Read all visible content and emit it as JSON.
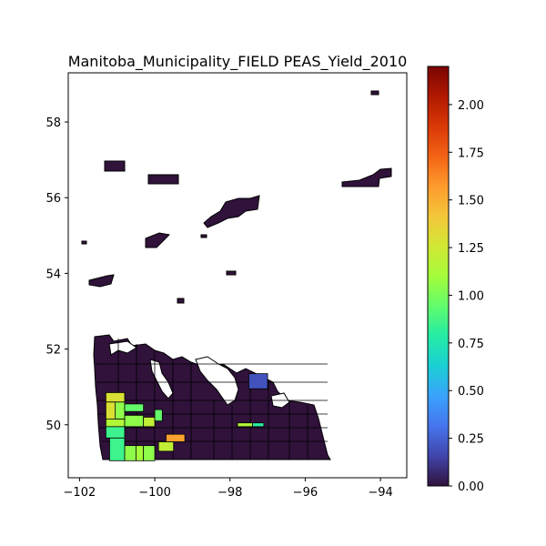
{
  "title": "Manitoba_Municipality_FIELD PEAS_Yield_2010",
  "x_axis": {
    "range": [
      -102.3,
      -93.3
    ],
    "ticks": [
      {
        "v": -102,
        "label": "−102"
      },
      {
        "v": -100,
        "label": "−100"
      },
      {
        "v": -98,
        "label": "−98"
      },
      {
        "v": -96,
        "label": "−96"
      },
      {
        "v": -94,
        "label": "−94"
      }
    ]
  },
  "y_axis": {
    "range": [
      48.6,
      59.3
    ],
    "ticks": [
      {
        "v": 50,
        "label": "50"
      },
      {
        "v": 52,
        "label": "52"
      },
      {
        "v": 54,
        "label": "54"
      },
      {
        "v": 56,
        "label": "56"
      },
      {
        "v": 58,
        "label": "58"
      }
    ]
  },
  "colorbar": {
    "colormap": "turbo",
    "range": [
      0,
      2.2
    ],
    "ticks": [
      {
        "v": 0.0,
        "label": "0.00"
      },
      {
        "v": 0.25,
        "label": "0.25"
      },
      {
        "v": 0.5,
        "label": "0.50"
      },
      {
        "v": 0.75,
        "label": "0.75"
      },
      {
        "v": 1.0,
        "label": "1.00"
      },
      {
        "v": 1.25,
        "label": "1.25"
      },
      {
        "v": 1.5,
        "label": "1.50"
      },
      {
        "v": 1.75,
        "label": "1.75"
      },
      {
        "v": 2.0,
        "label": "2.00"
      }
    ],
    "stops": [
      "#30123b",
      "#4145ab",
      "#4675ed",
      "#39a2fc",
      "#1bcfd4",
      "#24eca6",
      "#61fc6c",
      "#a4fc3b",
      "#d1e834",
      "#f3c63a",
      "#fe9b2d",
      "#f36315",
      "#d93806",
      "#b11901",
      "#7a0403"
    ]
  },
  "chart_data": {
    "type": "heatmap",
    "title": "Manitoba_Municipality_FIELD PEAS_Yield_2010",
    "value_range": [
      0,
      2.2
    ],
    "highlighted_regions": [
      {
        "lon": [
          -101.3,
          -100.8
        ],
        "lat": [
          50.6,
          50.85
        ],
        "value": 1.3
      },
      {
        "lon": [
          -101.2,
          -100.8
        ],
        "lat": [
          50.15,
          50.6
        ],
        "value": 1.05
      },
      {
        "lon": [
          -101.3,
          -101.05
        ],
        "lat": [
          50.1,
          50.6
        ],
        "value": 1.3
      },
      {
        "lon": [
          -100.8,
          -100.3
        ],
        "lat": [
          50.35,
          50.55
        ],
        "value": 0.95
      },
      {
        "lon": [
          -101.3,
          -100.8
        ],
        "lat": [
          49.95,
          50.15
        ],
        "value": 1.15
      },
      {
        "lon": [
          -100.8,
          -100.3
        ],
        "lat": [
          49.95,
          50.25
        ],
        "value": 1.05
      },
      {
        "lon": [
          -100.3,
          -100.0
        ],
        "lat": [
          49.95,
          50.2
        ],
        "value": 1.2
      },
      {
        "lon": [
          -100.0,
          -99.8
        ],
        "lat": [
          50.1,
          50.4
        ],
        "value": 0.95
      },
      {
        "lon": [
          -101.3,
          -100.8
        ],
        "lat": [
          49.65,
          49.95
        ],
        "value": 0.85
      },
      {
        "lon": [
          -101.2,
          -100.8
        ],
        "lat": [
          49.05,
          49.65
        ],
        "value": 0.85
      },
      {
        "lon": [
          -100.8,
          -100.5
        ],
        "lat": [
          49.05,
          49.45
        ],
        "value": 1.05
      },
      {
        "lon": [
          -100.5,
          -100.3
        ],
        "lat": [
          49.05,
          49.45
        ],
        "value": 1.1
      },
      {
        "lon": [
          -100.3,
          -100.0
        ],
        "lat": [
          49.05,
          49.45
        ],
        "value": 1.05
      },
      {
        "lon": [
          -99.7,
          -99.2
        ],
        "lat": [
          49.55,
          49.75
        ],
        "value": 1.55
      },
      {
        "lon": [
          -99.9,
          -99.5
        ],
        "lat": [
          49.3,
          49.55
        ],
        "value": 1.2
      },
      {
        "lon": [
          -97.5,
          -97.0
        ],
        "lat": [
          50.95,
          51.35
        ],
        "value": 0.2
      },
      {
        "lon": [
          -97.8,
          -97.4
        ],
        "lat": [
          49.95,
          50.05
        ],
        "value": 1.15
      },
      {
        "lon": [
          -97.4,
          -97.1
        ],
        "lat": [
          49.95,
          50.05
        ],
        "value": 0.8
      }
    ],
    "default_value": 0.0
  }
}
